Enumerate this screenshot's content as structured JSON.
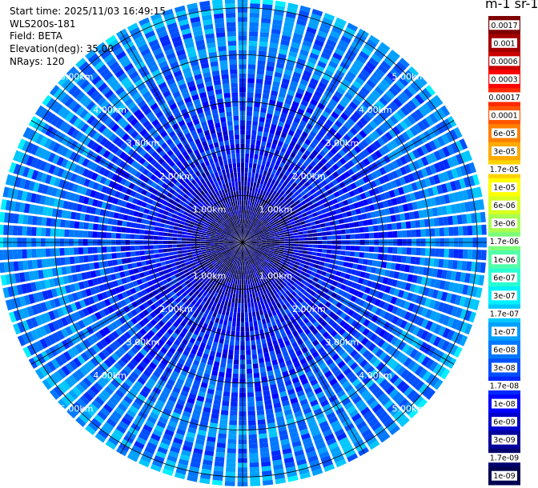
{
  "header": {
    "start_time": "Start time: 2025/11/03 16:49:15",
    "instrument": "WLS200s-181",
    "field": "Field: BETA",
    "elevation": "Elevation(deg): 35.00",
    "nrays": "NRays: 120"
  },
  "colorbar": {
    "title": "m-1 sr-1",
    "tick_labels": [
      "0.0017",
      "0.001",
      "0.0006",
      "0.0003",
      "0.00017",
      "0.0001",
      "6e-05",
      "3e-05",
      "1.7e-05",
      "1e-05",
      "6e-06",
      "3e-06",
      "1.7e-06",
      "1e-06",
      "6e-07",
      "3e-07",
      "1.7e-07",
      "1e-07",
      "6e-08",
      "3e-08",
      "1.7e-08",
      "1e-08",
      "6e-09",
      "3e-09",
      "1.7e-09",
      "1e-09"
    ],
    "colors": [
      "#7f0000",
      "#a40000",
      "#cc0000",
      "#ff0000",
      "#ff2a00",
      "#ff5500",
      "#ff8000",
      "#ffaa00",
      "#ffd200",
      "#ffff00",
      "#d8ff20",
      "#a8ff50",
      "#7cff7a",
      "#50ffa8",
      "#2affd2",
      "#00f0ff",
      "#00c8ff",
      "#00a0ff",
      "#0078ff",
      "#0050ff",
      "#0028ff",
      "#0000ff",
      "#0000cc",
      "#00009c",
      "#00006e",
      "#000050"
    ]
  },
  "chart_data": {
    "type": "ppi_polar",
    "variable": "BETA",
    "units": "m-1 sr-1",
    "n_rays": 120,
    "elevation_deg": 35.0,
    "range_rings_km": [
      1,
      2,
      3,
      4,
      5
    ],
    "ring_labels": [
      "1.00km",
      "2.00km",
      "3.00km",
      "4.00km",
      "5.00km"
    ],
    "max_range_km": 5.2,
    "gate_length_km": 0.1,
    "log_beta_min": -9,
    "log_beta_max": -2.77,
    "radial_profile": [
      {
        "range_km": 0.1,
        "log_beta": -8.9
      },
      {
        "range_km": 0.5,
        "log_beta": -8.7
      },
      {
        "range_km": 1.0,
        "log_beta": -8.4
      },
      {
        "range_km": 1.5,
        "log_beta": -8.0
      },
      {
        "range_km": 2.0,
        "log_beta": -7.8
      },
      {
        "range_km": 2.5,
        "log_beta": -7.7
      },
      {
        "range_km": 3.0,
        "log_beta": -7.5
      },
      {
        "range_km": 3.5,
        "log_beta": -7.5
      },
      {
        "range_km": 4.0,
        "log_beta": -7.1
      },
      {
        "range_km": 4.5,
        "log_beta": -7.3
      },
      {
        "range_km": 5.0,
        "log_beta": -7.1
      },
      {
        "range_km": 5.2,
        "log_beta": -6.9
      }
    ],
    "grid": true
  }
}
